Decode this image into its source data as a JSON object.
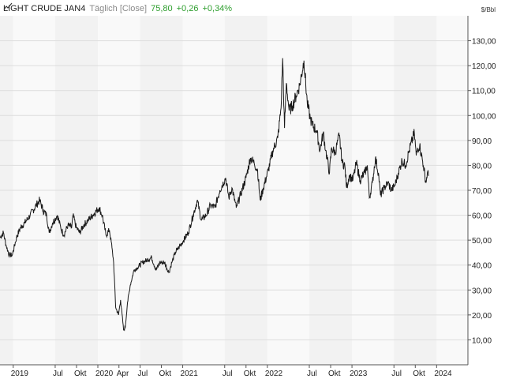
{
  "header": {
    "title": "LIGHT CRUDE JAN4",
    "period": "Täglich [Close]",
    "last": "75,80",
    "change": "+0,26",
    "change_pct": "+0,34%",
    "positive_color": "#2e9e2e",
    "icon": "line-chart-icon"
  },
  "unit_label": "$/Bbl",
  "chart_data": {
    "type": "line",
    "title": "LIGHT CRUDE JAN4",
    "xlabel": "",
    "ylabel": "$/Bbl",
    "ylim": [
      0,
      140
    ],
    "yticks": [
      10,
      20,
      30,
      40,
      50,
      60,
      70,
      80,
      90,
      100,
      110,
      120,
      130
    ],
    "ytick_labels": [
      "10,00",
      "20,00",
      "30,00",
      "40,00",
      "50,00",
      "60,00",
      "70,00",
      "80,00",
      "90,00",
      "100,00",
      "110,00",
      "120,00",
      "130,00"
    ],
    "xlim": [
      "2018-11-05",
      "2024-05-15"
    ],
    "xticks": [
      "2019-01-01",
      "2019-07-01",
      "2019-10-01",
      "2020-01-01",
      "2020-04-01",
      "2020-07-01",
      "2020-10-01",
      "2021-01-01",
      "2021-07-01",
      "2021-10-01",
      "2022-01-01",
      "2022-07-01",
      "2022-10-01",
      "2023-01-01",
      "2023-07-01",
      "2023-10-01",
      "2024-01-01"
    ],
    "xtick_labels": [
      "2019",
      "Jul",
      "Okt",
      "2020",
      "Apr",
      "Jul",
      "Okt",
      "2021",
      "Jul",
      "Okt",
      "2022",
      "Jul",
      "Okt",
      "2023",
      "Jul",
      "Okt",
      "2024"
    ],
    "grid": true,
    "legend": "none",
    "line_color": "#1a1a1a",
    "series": [
      {
        "values": [
          [
            "2018-11-05",
            51
          ],
          [
            "2018-11-20",
            53
          ],
          [
            "2018-12-01",
            48
          ],
          [
            "2018-12-15",
            44
          ],
          [
            "2018-12-28",
            44
          ],
          [
            "2019-01-15",
            51
          ],
          [
            "2019-02-01",
            55
          ],
          [
            "2019-02-20",
            57
          ],
          [
            "2019-03-15",
            60
          ],
          [
            "2019-04-10",
            64
          ],
          [
            "2019-04-25",
            66
          ],
          [
            "2019-05-10",
            62
          ],
          [
            "2019-05-25",
            60
          ],
          [
            "2019-06-05",
            53
          ],
          [
            "2019-06-20",
            57
          ],
          [
            "2019-07-10",
            60
          ],
          [
            "2019-07-25",
            55
          ],
          [
            "2019-08-07",
            52
          ],
          [
            "2019-08-25",
            56
          ],
          [
            "2019-09-10",
            55
          ],
          [
            "2019-09-16",
            60
          ],
          [
            "2019-09-30",
            55
          ],
          [
            "2019-10-15",
            53
          ],
          [
            "2019-11-01",
            56
          ],
          [
            "2019-11-20",
            58
          ],
          [
            "2019-12-10",
            60
          ],
          [
            "2020-01-06",
            63
          ],
          [
            "2020-01-20",
            60
          ],
          [
            "2020-02-05",
            52
          ],
          [
            "2020-02-20",
            54
          ],
          [
            "2020-03-02",
            47
          ],
          [
            "2020-03-09",
            41
          ],
          [
            "2020-03-18",
            23
          ],
          [
            "2020-03-30",
            20
          ],
          [
            "2020-04-08",
            26
          ],
          [
            "2020-04-21",
            14
          ],
          [
            "2020-04-28",
            15
          ],
          [
            "2020-05-08",
            25
          ],
          [
            "2020-05-20",
            32
          ],
          [
            "2020-06-05",
            38
          ],
          [
            "2020-06-20",
            39
          ],
          [
            "2020-07-10",
            41
          ],
          [
            "2020-07-30",
            42
          ],
          [
            "2020-08-20",
            43
          ],
          [
            "2020-09-08",
            38
          ],
          [
            "2020-09-25",
            41
          ],
          [
            "2020-10-15",
            41
          ],
          [
            "2020-11-02",
            37
          ],
          [
            "2020-11-15",
            41
          ],
          [
            "2020-11-30",
            45
          ],
          [
            "2020-12-15",
            47
          ],
          [
            "2021-01-05",
            50
          ],
          [
            "2021-01-25",
            53
          ],
          [
            "2021-02-15",
            60
          ],
          [
            "2021-03-05",
            66
          ],
          [
            "2021-03-22",
            58
          ],
          [
            "2021-04-12",
            60
          ],
          [
            "2021-05-01",
            64
          ],
          [
            "2021-05-20",
            63
          ],
          [
            "2021-06-10",
            70
          ],
          [
            "2021-07-05",
            75
          ],
          [
            "2021-07-19",
            67
          ],
          [
            "2021-08-01",
            71
          ],
          [
            "2021-08-20",
            63
          ],
          [
            "2021-09-10",
            69
          ],
          [
            "2021-10-01",
            75
          ],
          [
            "2021-10-20",
            83
          ],
          [
            "2021-11-05",
            81
          ],
          [
            "2021-11-20",
            78
          ],
          [
            "2021-12-01",
            66
          ],
          [
            "2021-12-15",
            71
          ],
          [
            "2022-01-05",
            78
          ],
          [
            "2022-01-25",
            86
          ],
          [
            "2022-02-15",
            91
          ],
          [
            "2022-03-01",
            103
          ],
          [
            "2022-03-08",
            123
          ],
          [
            "2022-03-16",
            95
          ],
          [
            "2022-03-24",
            113
          ],
          [
            "2022-04-05",
            102
          ],
          [
            "2022-04-20",
            104
          ],
          [
            "2022-05-05",
            108
          ],
          [
            "2022-05-20",
            112
          ],
          [
            "2022-06-08",
            122
          ],
          [
            "2022-06-22",
            105
          ],
          [
            "2022-07-05",
            99
          ],
          [
            "2022-07-15",
            96
          ],
          [
            "2022-08-01",
            94
          ],
          [
            "2022-08-16",
            86
          ],
          [
            "2022-08-30",
            93
          ],
          [
            "2022-09-10",
            86
          ],
          [
            "2022-09-26",
            77
          ],
          [
            "2022-10-05",
            87
          ],
          [
            "2022-10-20",
            85
          ],
          [
            "2022-11-07",
            92
          ],
          [
            "2022-11-20",
            81
          ],
          [
            "2022-12-01",
            80
          ],
          [
            "2022-12-09",
            71
          ],
          [
            "2022-12-20",
            76
          ],
          [
            "2023-01-05",
            74
          ],
          [
            "2023-01-20",
            81
          ],
          [
            "2023-02-05",
            74
          ],
          [
            "2023-02-25",
            77
          ],
          [
            "2023-03-08",
            80
          ],
          [
            "2023-03-17",
            67
          ],
          [
            "2023-03-30",
            73
          ],
          [
            "2023-04-12",
            83
          ],
          [
            "2023-04-25",
            77
          ],
          [
            "2023-05-04",
            68
          ],
          [
            "2023-05-20",
            71
          ],
          [
            "2023-06-05",
            73
          ],
          [
            "2023-06-20",
            70
          ],
          [
            "2023-07-05",
            72
          ],
          [
            "2023-07-20",
            77
          ],
          [
            "2023-08-05",
            82
          ],
          [
            "2023-08-20",
            80
          ],
          [
            "2023-09-05",
            86
          ],
          [
            "2023-09-27",
            93
          ],
          [
            "2023-10-05",
            84
          ],
          [
            "2023-10-12",
            87
          ],
          [
            "2023-10-20",
            88
          ],
          [
            "2023-11-05",
            80
          ],
          [
            "2023-11-16",
            73
          ],
          [
            "2023-11-22",
            77
          ],
          [
            "2023-11-28",
            75.8
          ]
        ]
      }
    ]
  }
}
